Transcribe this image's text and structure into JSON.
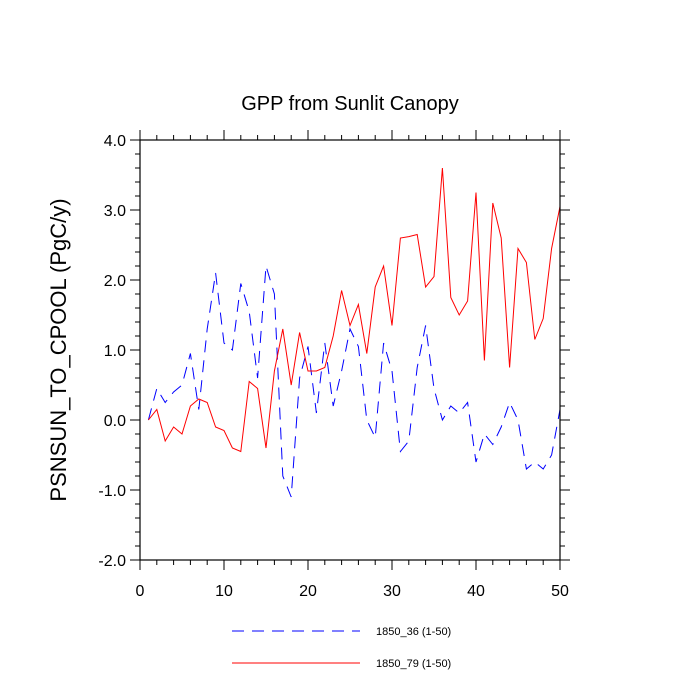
{
  "chart_data": {
    "type": "line",
    "title": "GPP from Sunlit Canopy",
    "xlabel": "",
    "ylabel": "PSNSUN_TO_CPOOL  (PgC/y)",
    "xlim": [
      0,
      50
    ],
    "ylim": [
      -2.0,
      4.0
    ],
    "xticks": [
      0,
      10,
      20,
      30,
      40,
      50
    ],
    "xtick_labels": [
      "0",
      "10",
      "20",
      "30",
      "40",
      "50"
    ],
    "yticks": [
      -2.0,
      -1.0,
      0.0,
      1.0,
      2.0,
      3.0,
      4.0
    ],
    "ytick_labels": [
      "-2.0",
      "-1.0",
      "0.0",
      "1.0",
      "2.0",
      "3.0",
      "4.0"
    ],
    "legend_position": "bottom-center",
    "x": [
      1,
      2,
      3,
      4,
      5,
      6,
      7,
      8,
      9,
      10,
      11,
      12,
      13,
      14,
      15,
      16,
      17,
      18,
      19,
      20,
      21,
      22,
      23,
      24,
      25,
      26,
      27,
      28,
      29,
      30,
      31,
      32,
      33,
      34,
      35,
      36,
      37,
      38,
      39,
      40,
      41,
      42,
      43,
      44,
      45,
      46,
      47,
      48,
      49,
      50
    ],
    "series": [
      {
        "name": "1850_36 (1-50)",
        "color": "#0000ff",
        "dash": "dashed",
        "values": [
          0.0,
          0.45,
          0.25,
          0.4,
          0.5,
          0.95,
          0.15,
          1.3,
          2.1,
          1.1,
          1.0,
          1.95,
          1.55,
          0.6,
          2.2,
          1.8,
          -0.8,
          -1.1,
          0.6,
          1.05,
          0.1,
          1.1,
          0.2,
          0.7,
          1.3,
          1.05,
          0.0,
          -0.25,
          1.1,
          0.7,
          -0.45,
          -0.3,
          0.75,
          1.35,
          0.45,
          0.0,
          0.2,
          0.1,
          0.25,
          -0.6,
          -0.2,
          -0.35,
          -0.1,
          0.25,
          0.0,
          -0.7,
          -0.6,
          -0.7,
          -0.5,
          0.15
        ]
      },
      {
        "name": "1850_79 (1-50)",
        "color": "#ff0000",
        "dash": "solid",
        "values": [
          0.0,
          0.15,
          -0.3,
          -0.1,
          -0.2,
          0.2,
          0.3,
          0.25,
          -0.1,
          -0.15,
          -0.4,
          -0.45,
          0.55,
          0.45,
          -0.4,
          0.7,
          1.3,
          0.5,
          1.25,
          0.7,
          0.7,
          0.75,
          1.2,
          1.85,
          1.35,
          1.65,
          0.95,
          1.9,
          2.2,
          1.35,
          2.6,
          2.62,
          2.65,
          1.9,
          2.05,
          3.6,
          1.75,
          1.5,
          1.7,
          3.25,
          0.85,
          3.1,
          2.6,
          0.75,
          2.45,
          2.25,
          1.15,
          1.45,
          2.45,
          3.05
        ]
      }
    ]
  }
}
